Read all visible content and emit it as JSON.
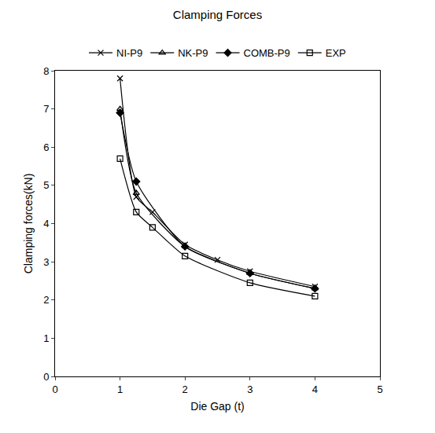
{
  "chart_data": {
    "type": "line",
    "title": "Clamping Forces",
    "x_label": "Die Gap (t)",
    "y_label": "Clamping forces(kN)",
    "series": [
      {
        "name": "NI-P9",
        "color": "#000000",
        "marker": "x",
        "line_style": "solid",
        "x": [
          1.0,
          1.25,
          1.5,
          2.0,
          2.5,
          3.0,
          4.0
        ],
        "values": [
          7.8,
          4.7,
          4.3,
          3.45,
          3.05,
          2.75,
          2.35
        ]
      },
      {
        "name": "NK-P9",
        "color": "#000000",
        "marker": "triangle-open",
        "line_style": "solid",
        "x": [
          1.0,
          1.25,
          2.0,
          3.0,
          4.0
        ],
        "values": [
          7.0,
          4.8,
          3.4,
          2.7,
          2.3
        ]
      },
      {
        "name": "COMB-P9",
        "color": "#000000",
        "marker": "diamond",
        "line_style": "solid",
        "x": [
          1.0,
          1.25,
          2.0,
          3.0,
          4.0
        ],
        "values": [
          6.9,
          5.1,
          3.4,
          2.7,
          2.3
        ]
      },
      {
        "name": "EXP",
        "color": "#000000",
        "marker": "square-open",
        "line_style": "solid",
        "x": [
          1.0,
          1.25,
          1.5,
          2.0,
          3.0,
          4.0
        ],
        "values": [
          5.7,
          4.3,
          3.9,
          3.15,
          2.45,
          2.1
        ]
      }
    ],
    "xlim": [
      0,
      5
    ],
    "xticks": [
      0,
      1,
      2,
      3,
      4,
      5
    ],
    "ylim": [
      0,
      8
    ],
    "yticks": [
      0,
      1,
      2,
      3,
      4,
      5,
      6,
      7,
      8
    ],
    "grid": false,
    "legend": "top"
  }
}
